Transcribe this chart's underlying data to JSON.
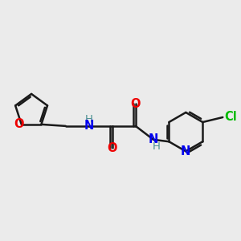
{
  "background_color": "#ebebeb",
  "atom_colors": {
    "C": "#1a1a1a",
    "N": "#0000ee",
    "O": "#ee0000",
    "Cl": "#00bb00",
    "H": "#4a9090"
  },
  "bond_color": "#1a1a1a",
  "bond_width": 1.8,
  "figsize": [
    3.0,
    3.0
  ],
  "dpi": 100
}
